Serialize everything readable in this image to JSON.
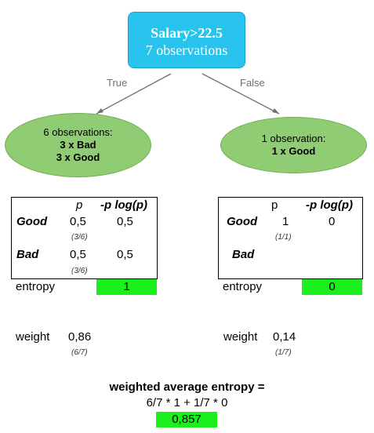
{
  "root": {
    "line1": "Salary>22.5",
    "line2": "7 observations"
  },
  "edges": {
    "left": "True",
    "right": "False"
  },
  "left_node": {
    "line1": "6 observations:",
    "line2": "3 x Bad",
    "line3": "3 x Good"
  },
  "right_node": {
    "line1": "1 observation:",
    "line2": "1 x Good"
  },
  "left_table": {
    "col_p": "p",
    "col_plogp": "-p log(p)",
    "row_good": {
      "label": "Good",
      "p": "0,5",
      "plogp": "0,5",
      "frac": "(3/6)"
    },
    "row_bad": {
      "label": "Bad",
      "p": "0,5",
      "plogp": "0,5",
      "frac": "(3/6)"
    },
    "entropy_label": "entropy",
    "entropy_value": "1",
    "weight_label": "weight",
    "weight_value": "0,86",
    "weight_frac": "(6/7)"
  },
  "right_table": {
    "col_p": "p",
    "col_plogp": "-p log(p)",
    "row_good": {
      "label": "Good",
      "p": "1",
      "plogp": "0",
      "frac": "(1/1)"
    },
    "row_bad": {
      "label": "Bad"
    },
    "entropy_label": "entropy",
    "entropy_value": "0",
    "weight_label": "weight",
    "weight_value": "0,14",
    "weight_frac": "(1/7)"
  },
  "summary": {
    "title": "weighted average entropy =",
    "formula": "6/7 * 1 + 1/7 * 0",
    "result": "0,857"
  },
  "colors": {
    "root": "#29c4ee",
    "node": "#8fcc73",
    "highlight": "#1cf01c",
    "edge": "#707070"
  }
}
